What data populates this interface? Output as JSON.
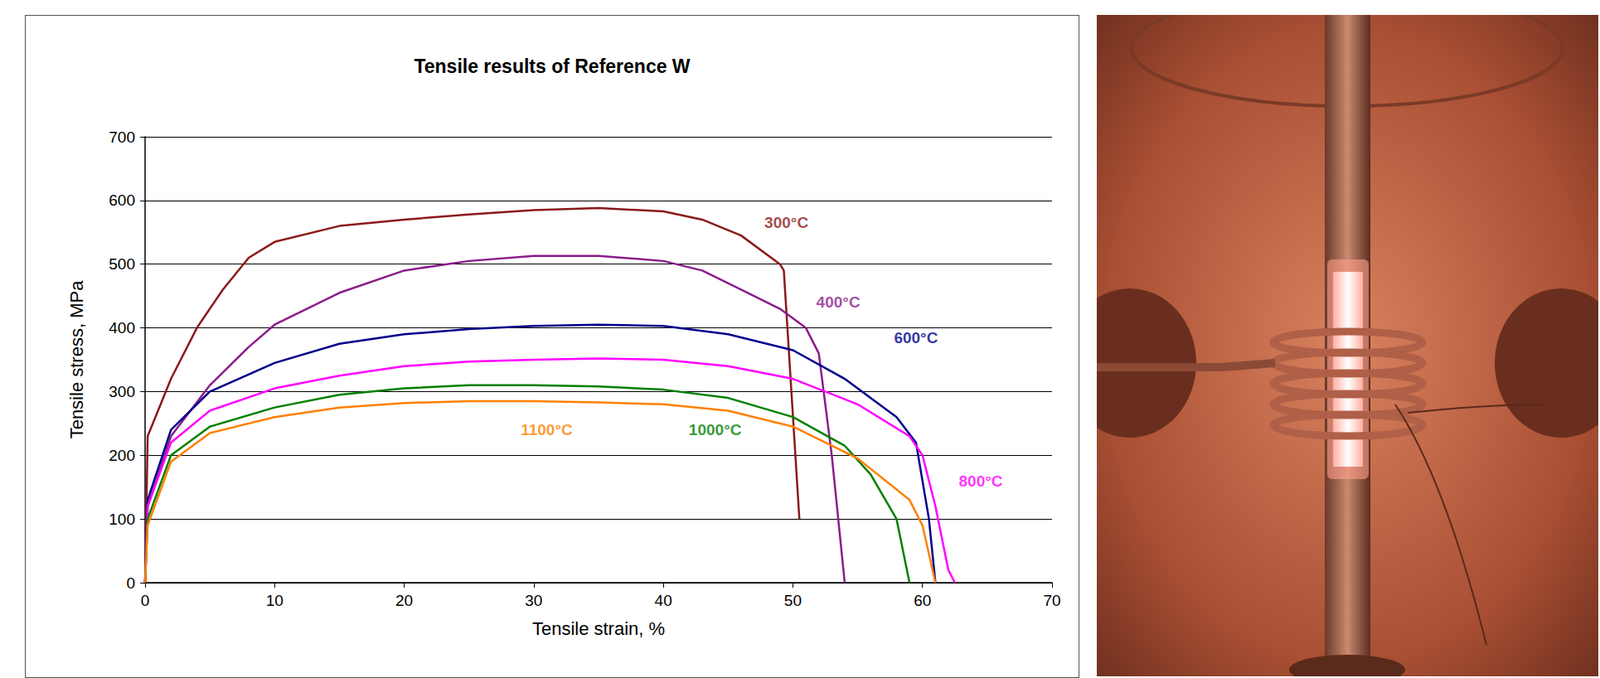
{
  "chart_data": {
    "type": "line",
    "title": "Tensile results of Reference W",
    "x_label": "Tensile strain, %",
    "y_label": "Tensile stress, MPa",
    "xlim": [
      0,
      70
    ],
    "xticks": [
      0,
      10,
      20,
      30,
      40,
      50,
      60,
      70
    ],
    "ylim": [
      0,
      700
    ],
    "yticks": [
      0,
      100,
      200,
      300,
      400,
      500,
      600,
      700
    ],
    "grid": "y",
    "series": [
      {
        "name": "300°C",
        "color": "#8B1A1A",
        "label_at": [
          49.5,
          565
        ],
        "x": [
          0,
          0.2,
          2,
          4,
          6,
          8,
          10,
          15,
          20,
          25,
          30,
          35,
          40,
          43,
          46,
          49,
          49.3,
          50.5
        ],
        "values": [
          0,
          230,
          320,
          400,
          460,
          510,
          535,
          560,
          570,
          578,
          585,
          588,
          583,
          570,
          545,
          500,
          490,
          100
        ]
      },
      {
        "name": "400°C",
        "color": "#8B1C8B",
        "label_at": [
          53.5,
          440
        ],
        "x": [
          0,
          0.2,
          2,
          5,
          8,
          10,
          15,
          20,
          25,
          30,
          35,
          40,
          43,
          46,
          49,
          51,
          52,
          53,
          54
        ],
        "values": [
          0,
          120,
          230,
          310,
          370,
          405,
          455,
          490,
          505,
          513,
          513,
          505,
          490,
          460,
          430,
          400,
          360,
          200,
          0
        ]
      },
      {
        "name": "600°C",
        "color": "#00008B",
        "label_at": [
          59.5,
          385
        ],
        "x": [
          0,
          0.2,
          2,
          5,
          10,
          15,
          20,
          25,
          30,
          35,
          40,
          45,
          50,
          54,
          58,
          59.5,
          60.5,
          61
        ],
        "values": [
          0,
          130,
          240,
          300,
          345,
          375,
          390,
          398,
          403,
          405,
          403,
          390,
          365,
          320,
          260,
          220,
          100,
          0
        ]
      },
      {
        "name": "800°C",
        "color": "#FF00FF",
        "label_at": [
          64.5,
          160
        ],
        "x": [
          0,
          0.2,
          2,
          5,
          10,
          15,
          20,
          25,
          30,
          35,
          40,
          45,
          50,
          55,
          59,
          60,
          61,
          62,
          62.5
        ],
        "values": [
          0,
          120,
          220,
          270,
          305,
          325,
          340,
          347,
          350,
          352,
          350,
          340,
          320,
          280,
          230,
          200,
          120,
          20,
          0
        ]
      },
      {
        "name": "1000°C",
        "color": "#008000",
        "label_at": [
          44,
          240
        ],
        "x": [
          0,
          0.2,
          2,
          5,
          10,
          15,
          20,
          25,
          30,
          35,
          40,
          45,
          50,
          54,
          56,
          58,
          59
        ],
        "values": [
          0,
          100,
          200,
          245,
          275,
          295,
          305,
          310,
          310,
          308,
          303,
          290,
          260,
          215,
          170,
          100,
          0
        ]
      },
      {
        "name": "1100°C",
        "color": "#FF8000",
        "label_at": [
          31,
          240
        ],
        "x": [
          0,
          0.2,
          2,
          5,
          10,
          15,
          20,
          25,
          30,
          35,
          40,
          45,
          50,
          55,
          59,
          60,
          61
        ],
        "values": [
          0,
          90,
          190,
          235,
          260,
          275,
          282,
          285,
          285,
          283,
          280,
          270,
          245,
          195,
          130,
          90,
          0
        ]
      }
    ]
  }
}
